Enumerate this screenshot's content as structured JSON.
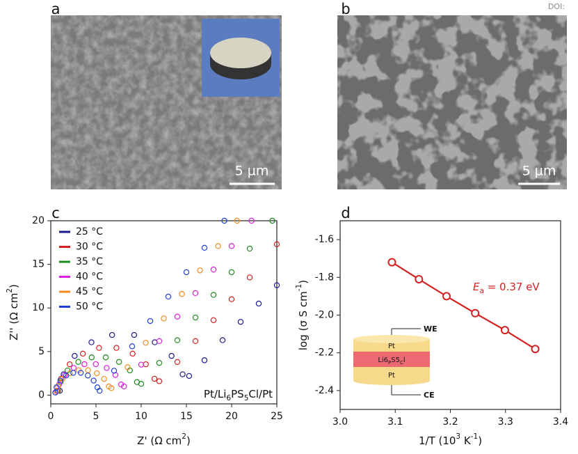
{
  "figure": {
    "doi": "DOI:",
    "images": [
      {
        "label": "a",
        "scale_bar": "5 µm"
      },
      {
        "label": "b",
        "scale_bar": "5 µm"
      }
    ]
  },
  "chart_data": [
    {
      "type": "scatter",
      "label": "c",
      "xlabel": "Z' (Ω cm2)",
      "ylabel": "Z'' (Ω cm2)",
      "annotation": "Pt/Li6PS5Cl/Pt",
      "xlim": [
        0,
        25
      ],
      "ylim": [
        -1,
        20
      ],
      "xticks": [
        0,
        5,
        10,
        15,
        20,
        25
      ],
      "yticks": [
        0,
        5,
        10,
        15,
        20
      ],
      "legend": "upper left",
      "series": [
        {
          "name": "25 °C",
          "color": "#1a1a8c",
          "x": [
            1,
            1.42,
            2.64,
            4.5,
            6.78,
            9.22,
            11.5,
            13.36,
            14.58,
            15.3,
            17,
            19,
            21,
            23,
            25
          ],
          "y": [
            0.5,
            2.39,
            4.5,
            6.06,
            6.9,
            6.9,
            6.06,
            4.5,
            2.39,
            2.2,
            4,
            6.3,
            8.4,
            10.5,
            12.6
          ]
        },
        {
          "name": "30 °C",
          "color": "#d62020",
          "x": [
            0.8,
            1.13,
            2.09,
            3.55,
            5.34,
            7.26,
            9.05,
            10.51,
            11.47,
            12,
            14,
            16,
            18,
            20,
            22,
            25
          ],
          "y": [
            0.5,
            1.88,
            3.54,
            4.76,
            5.42,
            5.42,
            4.76,
            3.54,
            1.88,
            1.6,
            3.8,
            6.2,
            8.6,
            11,
            13.5,
            17.3
          ]
        },
        {
          "name": "35 °C",
          "color": "#1e8a1e",
          "x": [
            0.8,
            1.07,
            1.85,
            3.05,
            4.52,
            6.08,
            7.55,
            8.75,
            9.53,
            10,
            12,
            14,
            16,
            18,
            20,
            22,
            24.5
          ],
          "y": [
            0.5,
            1.5,
            2.83,
            3.81,
            4.33,
            4.33,
            3.81,
            2.83,
            1.5,
            1.3,
            3.7,
            6.3,
            8.9,
            11.5,
            14.1,
            16.8,
            20
          ]
        },
        {
          "name": "40 °C",
          "color": "#e020e0",
          "x": [
            0.7,
            0.92,
            1.55,
            2.53,
            3.72,
            4.98,
            6.18,
            7.15,
            7.78,
            8.1,
            10,
            12,
            14,
            16,
            18,
            20,
            22.2
          ],
          "y": [
            0.5,
            1.23,
            2.31,
            3.12,
            3.55,
            3.55,
            3.12,
            2.31,
            1.23,
            1,
            3.5,
            6.2,
            9,
            11.7,
            14.4,
            17.1,
            20
          ]
        },
        {
          "name": "45 °C",
          "color": "#f08c1e",
          "x": [
            0.6,
            0.78,
            1.3,
            2.1,
            3.08,
            4.12,
            5.1,
            5.9,
            6.42,
            6.7,
            8.5,
            10.5,
            12.5,
            14.5,
            16.5,
            18.5,
            20.6
          ],
          "y": [
            0.4,
            0.99,
            1.86,
            2.51,
            2.86,
            2.86,
            2.51,
            1.86,
            0.99,
            0.8,
            3.2,
            6,
            8.8,
            11.6,
            14.3,
            17.1,
            20
          ]
        },
        {
          "name": "50 °C",
          "color": "#1f3fd6",
          "x": [
            0.5,
            0.64,
            1.06,
            1.7,
            2.48,
            3.32,
            4.1,
            4.74,
            5.16,
            5.4,
            7,
            9,
            11,
            13,
            15,
            17,
            19.2
          ],
          "y": [
            0.3,
            0.89,
            1.67,
            2.25,
            2.56,
            2.56,
            2.25,
            1.67,
            0.89,
            0.5,
            2.8,
            5.6,
            8.5,
            11.3,
            14.1,
            16.9,
            20
          ]
        }
      ]
    },
    {
      "type": "scatter",
      "label": "d",
      "xlabel": "1/T (103 K-1)",
      "ylabel": "log (σ S cm-1)",
      "annotation": "Ea = 0.37 eV",
      "connect": true,
      "xlim": [
        3.0,
        3.4
      ],
      "ylim": [
        -2.5,
        -1.5
      ],
      "xticks": [
        {
          "value": 3,
          "label": "3.0"
        },
        3.1,
        3.2,
        3.3,
        3.4
      ],
      "yticks": [
        -2.4,
        -2.2,
        {
          "value": -2,
          "label": "-2.0"
        },
        -1.8,
        -1.6
      ],
      "series": [
        {
          "color": "#d42020",
          "x": [
            3.094,
            3.143,
            3.193,
            3.245,
            3.299,
            3.354
          ],
          "y": [
            -1.72,
            -1.81,
            -1.9,
            -1.99,
            -2.08,
            -2.18
          ]
        }
      ],
      "inset": {
        "we": "WE",
        "top": "Pt",
        "middle": "Li6PS5Cl",
        "bottom": "Pt",
        "ce": "CE"
      }
    }
  ]
}
